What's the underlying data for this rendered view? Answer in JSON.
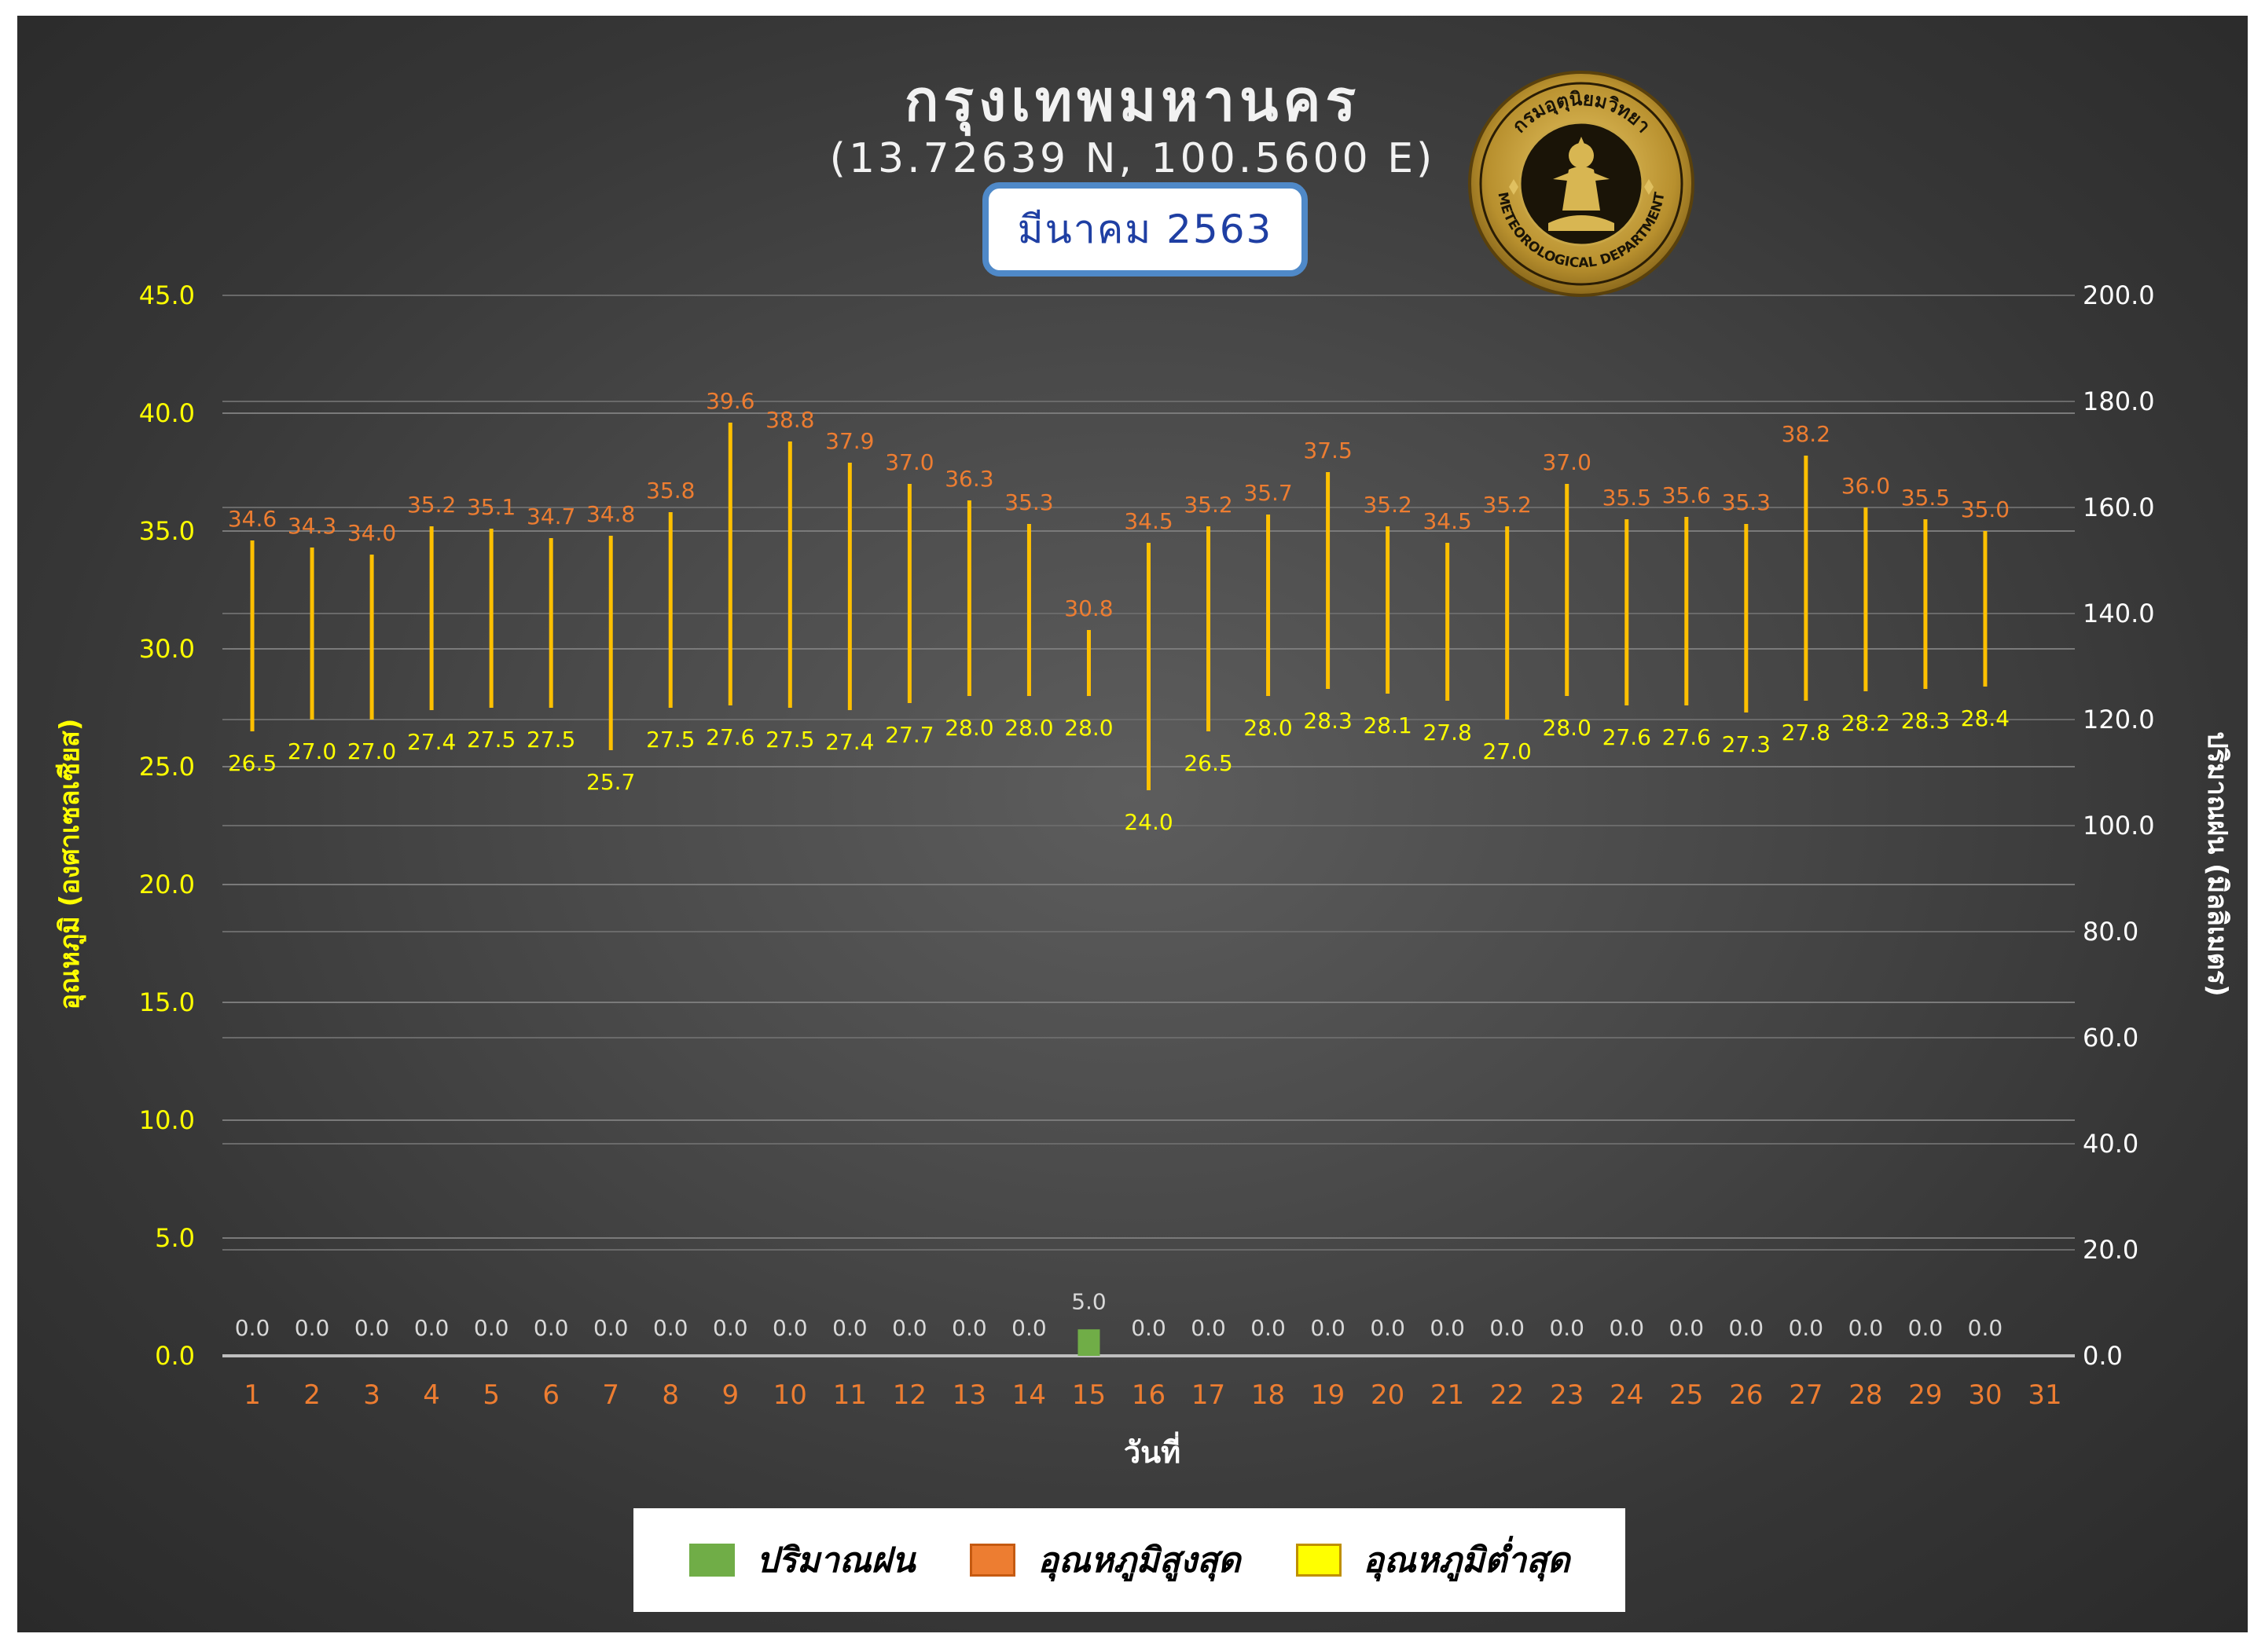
{
  "title": "กรุงเทพมหานคร",
  "subtitle": "(13.72639 N, 100.5600 E)",
  "month_label": "มีนาคม 2563",
  "logo": {
    "text_top": "กรมอุตุนิยมวิทยา",
    "text_bottom": "METEOROLOGICAL DEPARTMENT"
  },
  "colors": {
    "rain": "#70ad47",
    "tmax": "#ed7d31",
    "tmin": "#ffff00",
    "bar": "#ffc000",
    "left_axis": "#ffff00",
    "right_axis": "#ffffff",
    "tick_x": "#ed7d31",
    "box_border": "#4f89c8",
    "month_text": "#1f3fa3"
  },
  "chart_data": {
    "type": "bar",
    "xlabel": "วันที่",
    "ylabel_left": "อุณหภูมิ (องศาเซลเซียส)",
    "ylabel_right": "ปริมาณฝน (มิลลิเมตร)",
    "ylim_left": [
      0,
      45
    ],
    "ylim_right": [
      0,
      200
    ],
    "yticks_left": [
      "0.0",
      "5.0",
      "10.0",
      "15.0",
      "20.0",
      "25.0",
      "30.0",
      "35.0",
      "40.0",
      "45.0"
    ],
    "yticks_right": [
      "0.0",
      "20.0",
      "40.0",
      "60.0",
      "80.0",
      "100.0",
      "120.0",
      "140.0",
      "160.0",
      "180.0",
      "200.0"
    ],
    "categories": [
      "1",
      "2",
      "3",
      "4",
      "5",
      "6",
      "7",
      "8",
      "9",
      "10",
      "11",
      "12",
      "13",
      "14",
      "15",
      "16",
      "17",
      "18",
      "19",
      "20",
      "21",
      "22",
      "23",
      "24",
      "25",
      "26",
      "27",
      "28",
      "29",
      "30",
      "31"
    ],
    "grid": true,
    "legend_position": "bottom",
    "series": [
      {
        "name": "อุณหภูมิสูงสุด",
        "values": [
          34.6,
          34.3,
          34.0,
          35.2,
          35.1,
          34.7,
          34.8,
          35.8,
          39.6,
          38.8,
          37.9,
          37.0,
          36.3,
          35.3,
          30.8,
          34.5,
          35.2,
          35.7,
          37.5,
          35.2,
          34.5,
          35.2,
          37.0,
          35.5,
          35.6,
          35.3,
          38.2,
          36.0,
          35.5,
          35.0,
          null
        ],
        "labels": [
          "34.6",
          "34.3",
          "34.0",
          "35.2",
          "35.1",
          "34.7",
          "34.8",
          "35.8",
          "39.6",
          "38.8",
          "37.9",
          "37.0",
          "36.3",
          "35.3",
          "30.8",
          "34.5",
          "35.2",
          "35.7",
          "37.5",
          "35.2",
          "34.5",
          "35.2",
          "37.0",
          "35.5",
          "35.6",
          "35.3",
          "38.2",
          "36.0",
          "35.5",
          "35.0",
          ""
        ]
      },
      {
        "name": "อุณหภูมิต่ำสุด",
        "values": [
          26.5,
          27.0,
          27.0,
          27.4,
          27.5,
          27.5,
          25.7,
          27.5,
          27.6,
          27.5,
          27.4,
          27.7,
          28.0,
          28.0,
          28.0,
          24.0,
          26.5,
          28.0,
          28.3,
          28.1,
          27.8,
          27.0,
          28.0,
          27.6,
          27.6,
          27.3,
          27.8,
          28.2,
          28.3,
          28.4,
          null
        ],
        "labels": [
          "26.5",
          "27.0",
          "27.0",
          "27.4",
          "27.5",
          "27.5",
          "25.7",
          "27.5",
          "27.6",
          "27.5",
          "27.4",
          "27.7",
          "28.0",
          "28.0",
          "28.0",
          "24.0",
          "26.5",
          "28.0",
          "28.3",
          "28.1",
          "27.8",
          "27.0",
          "28.0",
          "27.6",
          "27.6",
          "27.3",
          "27.8",
          "28.2",
          "28.3",
          "28.4",
          ""
        ]
      },
      {
        "name": "ปริมาณฝน",
        "axis": "right",
        "values": [
          0.0,
          0.0,
          0.0,
          0.0,
          0.0,
          0.0,
          0.0,
          0.0,
          0.0,
          0.0,
          0.0,
          0.0,
          0.0,
          0.0,
          5.0,
          0.0,
          0.0,
          0.0,
          0.0,
          0.0,
          0.0,
          0.0,
          0.0,
          0.0,
          0.0,
          0.0,
          0.0,
          0.0,
          0.0,
          0.0,
          null
        ],
        "labels": [
          "0.0",
          "0.0",
          "0.0",
          "0.0",
          "0.0",
          "0.0",
          "0.0",
          "0.0",
          "0.0",
          "0.0",
          "0.0",
          "0.0",
          "0.0",
          "0.0",
          "5.0",
          "0.0",
          "0.0",
          "0.0",
          "0.0",
          "0.0",
          "0.0",
          "0.0",
          "0.0",
          "0.0",
          "0.0",
          "0.0",
          "0.0",
          "0.0",
          "0.0",
          "0.0",
          ""
        ]
      }
    ]
  },
  "legend": [
    {
      "label": "ปริมาณฝน",
      "color": "#70ad47",
      "border": "#70ad47"
    },
    {
      "label": "อุณหภูมิสูงสุด",
      "color": "#ed7d31",
      "border": "#c55a11"
    },
    {
      "label": "อุณหภูมิต่ำสุด",
      "color": "#ffff00",
      "border": "#bf9000"
    }
  ]
}
